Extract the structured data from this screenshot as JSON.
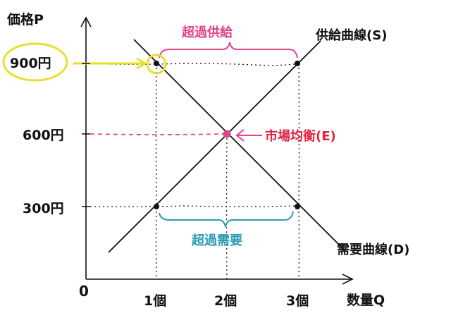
{
  "axes": {
    "y_label": "価格P",
    "x_label": "数量Q",
    "origin": "0"
  },
  "y_ticks": [
    {
      "value": 900,
      "label": "900円"
    },
    {
      "value": 600,
      "label": "600円"
    },
    {
      "value": 300,
      "label": "300円"
    }
  ],
  "x_ticks": [
    {
      "value": 1,
      "label": "1個"
    },
    {
      "value": 2,
      "label": "2個"
    },
    {
      "value": 3,
      "label": "3個"
    }
  ],
  "curves": {
    "supply": {
      "label": "供給曲線(S)",
      "color": "#111111"
    },
    "demand": {
      "label": "需要曲線(D)",
      "color": "#111111"
    }
  },
  "annotations": {
    "excess_supply": {
      "label": "超過供給",
      "color": "#e0448f"
    },
    "excess_demand": {
      "label": "超過需要",
      "color": "#2a9bb8"
    },
    "equilibrium": {
      "label": "市場均衡(E)",
      "color": "#e0233f"
    },
    "highlight_color": "#e9de2c"
  },
  "points": [
    {
      "name": "demand-point-900",
      "q": 1,
      "p": 900
    },
    {
      "name": "supply-point-900",
      "q": 3,
      "p": 900
    },
    {
      "name": "supply-point-300",
      "q": 1,
      "p": 300
    },
    {
      "name": "demand-point-300",
      "q": 3,
      "p": 300
    }
  ],
  "equilibrium_point": {
    "q": 2,
    "p": 600
  }
}
